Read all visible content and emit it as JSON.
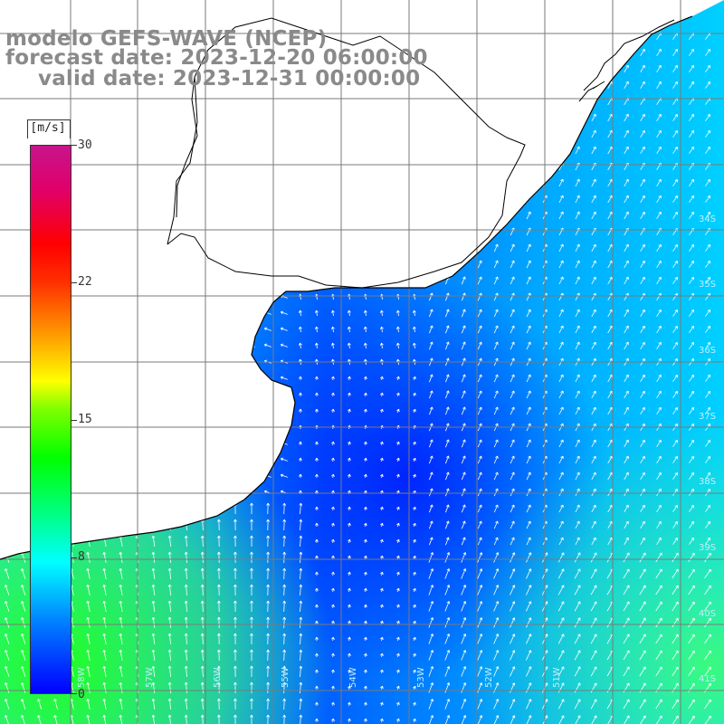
{
  "title": {
    "model": "modelo GEFS-WAVE (NCEP)",
    "forecast": "forecast date: 2023-12-20 06:00:00",
    "valid": "valid date: 2023-12-31 00:00:00"
  },
  "colorbar": {
    "unit": "[m/s]",
    "ticks": [
      "30",
      "22",
      "15",
      "8",
      "0"
    ],
    "range": [
      0,
      30
    ],
    "colors": [
      "#0000ff",
      "#0080ff",
      "#00ffff",
      "#00ff80",
      "#00ff00",
      "#ffff00",
      "#ff0000",
      "#c8148c"
    ]
  },
  "grid": {
    "lat_labels": [
      "34S",
      "35S",
      "36S",
      "37S",
      "38S",
      "39S",
      "40S",
      "41S"
    ],
    "lon_labels": [
      "58W",
      "57W",
      "56W",
      "55W",
      "54W",
      "53W",
      "52W",
      "51W"
    ]
  },
  "colors": {
    "ocean_low": "#0040ff",
    "ocean_high": "#40ff40",
    "land": "#ffffff",
    "grid": "#7a7a7a",
    "coast": "#000000"
  }
}
